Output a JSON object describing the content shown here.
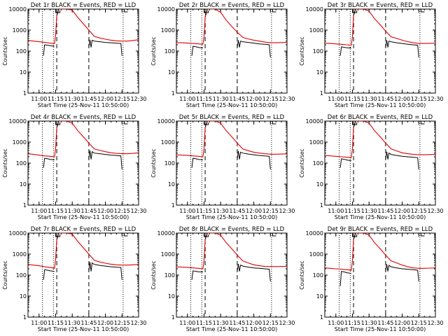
{
  "chart_data": {
    "type": "line",
    "x_axis_label": "Start Time (25-Nov-11 10:50:00)",
    "x_ticks": [
      "11:00",
      "11:15",
      "11:30",
      "11:45",
      "12:00",
      "12:15",
      "12:30"
    ],
    "x_range": [
      "10:50",
      "12:30"
    ],
    "y_axis_label": "Counts/sec",
    "y_scale": "log",
    "y_range": [
      1,
      10000
    ],
    "y_ticks": [
      "1",
      "10",
      "100",
      "1000",
      "10000"
    ],
    "legend": "BLACK = Events, RED = LLD",
    "series_colors": {
      "events": "#000000",
      "lld": "#e00000"
    },
    "markers": {
      "dotted_lines": [
        "11:03",
        "11:13",
        "12:16"
      ],
      "dashed_lines": [
        "11:16",
        "11:45"
      ],
      "top_flags": [
        "11:17",
        "12:17"
      ]
    },
    "panels": [
      {
        "title": "Det 1r BLACK = Events, RED = LLD",
        "time_min": [
          50,
          55,
          60,
          65,
          70,
          74,
          75,
          76,
          78,
          80,
          85,
          90,
          95,
          100,
          105,
          110,
          115,
          120,
          125,
          130,
          135,
          140,
          145,
          150
        ],
        "lld": [
          320,
          300,
          280,
          260,
          240,
          230,
          600,
          5000,
          20000,
          20000,
          20000,
          9000,
          4000,
          2000,
          1000,
          500,
          420,
          370,
          330,
          310,
          300,
          300,
          320,
          350
        ],
        "events": {
          "segment1": {
            "time_min": [
              64,
              65,
              68,
              70,
              74
            ],
            "values": [
              60,
              200,
              190,
              180,
              170
            ]
          },
          "segment2": {
            "time_min": [
              76,
              78
            ],
            "values": [
              5000,
              20000
            ]
          },
          "segment3": {
            "time_min": [
              105,
              106,
              107,
              108,
              110,
              115,
              120,
              125,
              130,
              134,
              135
            ],
            "values": [
              150,
              350,
              150,
              330,
              300,
              280,
              260,
              250,
              240,
              230,
              60
            ]
          }
        }
      },
      {
        "title": "Det 2r BLACK = Events, RED = LLD",
        "time_min": [
          50,
          55,
          60,
          65,
          70,
          74,
          75,
          76,
          78,
          80,
          85,
          90,
          95,
          100,
          105,
          110,
          115,
          120,
          125,
          130,
          135,
          140,
          145,
          150
        ],
        "lld": [
          250,
          250,
          240,
          230,
          220,
          210,
          500,
          4000,
          20000,
          20000,
          20000,
          7000,
          3000,
          1500,
          800,
          450,
          380,
          330,
          300,
          270,
          250,
          250,
          255,
          260
        ],
        "events": {
          "segment1": {
            "time_min": [
              64,
              65,
              68,
              70,
              74
            ],
            "values": [
              60,
              170,
              160,
              150,
              140
            ]
          },
          "segment2": {
            "time_min": [
              76,
              78
            ],
            "values": [
              5000,
              20000
            ]
          },
          "segment3": {
            "time_min": [
              105,
              106,
              107,
              108,
              110,
              115,
              120,
              125,
              130,
              134,
              135
            ],
            "values": [
              150,
              330,
              150,
              300,
              280,
              260,
              240,
              220,
              210,
              200,
              50
            ]
          }
        }
      },
      {
        "title": "Det 3r BLACK = Events, RED = LLD",
        "time_min": [
          50,
          55,
          60,
          65,
          70,
          74,
          75,
          76,
          78,
          80,
          85,
          90,
          95,
          100,
          105,
          110,
          115,
          120,
          125,
          130,
          135,
          140,
          145,
          150
        ],
        "lld": [
          240,
          230,
          220,
          210,
          200,
          190,
          500,
          5000,
          20000,
          20000,
          20000,
          8000,
          3500,
          1800,
          900,
          480,
          400,
          330,
          280,
          250,
          230,
          230,
          235,
          240
        ],
        "events": {
          "segment1": {
            "time_min": [
              64,
              65,
              68,
              70,
              74
            ],
            "values": [
              60,
              160,
              150,
              145,
              140
            ]
          },
          "segment2": {
            "time_min": [
              76,
              78
            ],
            "values": [
              5000,
              20000
            ]
          },
          "segment3": {
            "time_min": [
              105,
              106,
              107,
              108,
              110,
              115,
              120,
              125,
              130,
              134,
              135
            ],
            "values": [
              150,
              330,
              150,
              300,
              280,
              250,
              230,
              210,
              200,
              190,
              50
            ]
          }
        }
      },
      {
        "title": "Det 4r BLACK = Events, RED = LLD",
        "time_min": [
          50,
          55,
          60,
          65,
          70,
          74,
          75,
          76,
          78,
          80,
          85,
          90,
          95,
          100,
          105,
          110,
          115,
          120,
          125,
          130,
          135,
          140,
          145,
          150
        ],
        "lld": [
          280,
          260,
          240,
          220,
          210,
          200,
          500,
          5000,
          20000,
          20000,
          20000,
          8000,
          3500,
          1800,
          900,
          470,
          400,
          350,
          310,
          290,
          280,
          280,
          290,
          310
        ],
        "events": {
          "segment1": {
            "time_min": [
              64,
              65,
              68,
              70,
              74
            ],
            "values": [
              60,
              170,
              160,
              150,
              145
            ]
          },
          "segment2": {
            "time_min": [
              76,
              78
            ],
            "values": [
              5000,
              20000
            ]
          },
          "segment3": {
            "time_min": [
              105,
              106,
              107,
              108,
              110,
              115,
              120,
              125,
              130,
              134,
              135
            ],
            "values": [
              150,
              400,
              150,
              350,
              300,
              280,
              260,
              240,
              230,
              220,
              50
            ]
          }
        }
      },
      {
        "title": "Det 5r BLACK = Events, RED = LLD",
        "time_min": [
          50,
          55,
          60,
          65,
          70,
          74,
          75,
          76,
          78,
          80,
          85,
          90,
          95,
          100,
          105,
          110,
          115,
          120,
          125,
          130,
          135,
          140,
          145,
          150
        ],
        "lld": [
          250,
          240,
          230,
          220,
          210,
          200,
          500,
          5000,
          20000,
          20000,
          20000,
          8000,
          3500,
          1800,
          900,
          470,
          390,
          330,
          300,
          280,
          265,
          265,
          270,
          275
        ],
        "events": {
          "segment1": {
            "time_min": [
              64,
              65,
              68,
              70,
              74
            ],
            "values": [
              60,
              170,
              160,
              150,
              145
            ]
          },
          "segment2": {
            "time_min": [
              76,
              78
            ],
            "values": [
              5000,
              20000
            ]
          },
          "segment3": {
            "time_min": [
              105,
              106,
              107,
              108,
              110,
              115,
              120,
              125,
              130,
              134,
              135
            ],
            "values": [
              150,
              380,
              150,
              330,
              300,
              270,
              250,
              230,
              220,
              210,
              50
            ]
          }
        }
      },
      {
        "title": "Det 6r BLACK = Events, RED = LLD",
        "time_min": [
          50,
          55,
          60,
          65,
          70,
          74,
          75,
          76,
          78,
          80,
          85,
          90,
          95,
          100,
          105,
          110,
          115,
          120,
          125,
          130,
          135,
          140,
          145,
          150
        ],
        "lld": [
          230,
          220,
          210,
          200,
          190,
          180,
          500,
          5000,
          20000,
          20000,
          20000,
          8000,
          3500,
          1800,
          900,
          470,
          380,
          310,
          280,
          260,
          250,
          250,
          255,
          260
        ],
        "events": {
          "segment1": {
            "time_min": [
              64,
              65,
              68,
              70,
              74
            ],
            "values": [
              60,
              160,
              150,
              140,
              130
            ]
          },
          "segment2": {
            "time_min": [
              76,
              78
            ],
            "values": [
              5000,
              20000
            ]
          },
          "segment3": {
            "time_min": [
              105,
              106,
              107,
              108,
              110,
              115,
              120,
              125,
              130,
              134,
              135
            ],
            "values": [
              150,
              350,
              150,
              300,
              260,
              230,
              210,
              200,
              190,
              180,
              50
            ]
          }
        }
      },
      {
        "title": "Det 7r BLACK = Events, RED = LLD",
        "time_min": [
          50,
          55,
          60,
          65,
          70,
          74,
          75,
          76,
          78,
          80,
          85,
          90,
          95,
          100,
          105,
          110,
          115,
          120,
          125,
          130,
          135,
          140,
          145,
          150
        ],
        "lld": [
          320,
          300,
          280,
          250,
          230,
          210,
          600,
          5000,
          20000,
          20000,
          20000,
          9000,
          4000,
          2000,
          1000,
          500,
          420,
          370,
          330,
          310,
          300,
          300,
          310,
          320
        ],
        "events": {
          "segment1": {
            "time_min": [
              64,
              65,
              68,
              70,
              74
            ],
            "values": [
              60,
              180,
              170,
              160,
              150
            ]
          },
          "segment2": {
            "time_min": [
              76,
              78
            ],
            "values": [
              5000,
              20000
            ]
          },
          "segment3": {
            "time_min": [
              105,
              106,
              107,
              108,
              110,
              115,
              120,
              125,
              130,
              134,
              135
            ],
            "values": [
              150,
              420,
              150,
              380,
              320,
              290,
              270,
              250,
              240,
              230,
              60
            ]
          }
        }
      },
      {
        "title": "Det 8r BLACK = Events, RED = LLD",
        "time_min": [
          50,
          55,
          60,
          65,
          70,
          74,
          75,
          76,
          78,
          80,
          85,
          90,
          95,
          100,
          105,
          110,
          115,
          120,
          125,
          130,
          135,
          140,
          145,
          150
        ],
        "lld": [
          250,
          240,
          230,
          220,
          210,
          200,
          500,
          5000,
          20000,
          20000,
          20000,
          8000,
          3500,
          1800,
          900,
          470,
          380,
          310,
          280,
          260,
          255,
          255,
          258,
          260
        ],
        "events": {
          "segment1": {
            "time_min": [
              64,
              65,
              68,
              70,
              74
            ],
            "values": [
              60,
              160,
              150,
              145,
              140
            ]
          },
          "segment2": {
            "time_min": [
              76,
              78
            ],
            "values": [
              5000,
              20000
            ]
          },
          "segment3": {
            "time_min": [
              105,
              106,
              107,
              108,
              110,
              115,
              120,
              125,
              130,
              134,
              135
            ],
            "values": [
              150,
              340,
              150,
              300,
              270,
              240,
              220,
              210,
              200,
              190,
              50
            ]
          }
        }
      },
      {
        "title": "Det 9r BLACK = Events, RED = LLD",
        "time_min": [
          50,
          55,
          60,
          65,
          70,
          74,
          75,
          76,
          78,
          80,
          85,
          90,
          95,
          100,
          105,
          110,
          115,
          120,
          125,
          130,
          135,
          140,
          145,
          150
        ],
        "lld": [
          220,
          210,
          200,
          190,
          180,
          170,
          500,
          5000,
          20000,
          20000,
          20000,
          8000,
          3500,
          1800,
          900,
          470,
          380,
          300,
          250,
          220,
          210,
          210,
          215,
          220
        ],
        "events": {
          "segment1": {
            "time_min": [
              64,
              65,
              68,
              70,
              74
            ],
            "values": [
              30,
              150,
              140,
              130,
              120
            ]
          },
          "segment2": {
            "time_min": [
              76,
              78
            ],
            "values": [
              5000,
              20000
            ]
          },
          "segment3": {
            "time_min": [
              105,
              106,
              107,
              108,
              110,
              115,
              120,
              125,
              130,
              134,
              135
            ],
            "values": [
              150,
              330,
              150,
              290,
              250,
              220,
              200,
              190,
              180,
              170,
              50
            ]
          }
        }
      }
    ]
  }
}
